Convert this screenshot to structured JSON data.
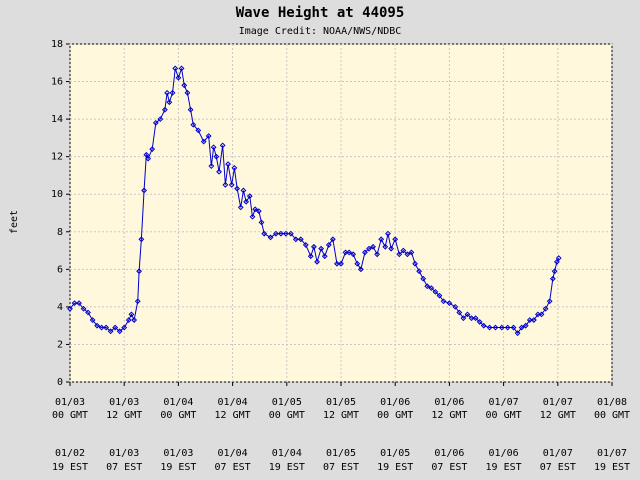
{
  "chart_data": {
    "type": "line",
    "title": "Wave Height at 44095",
    "subtitle": "Image Credit: NOAA/NWS/NDBC",
    "y_label": "feet",
    "color": "#0000cc",
    "grid": true,
    "xlim": [
      0,
      120
    ],
    "ylim": [
      0,
      18
    ],
    "yticks": [
      0,
      2,
      4,
      6,
      8,
      10,
      12,
      14,
      16,
      18
    ],
    "xticks": [
      {
        "value": 0,
        "label": "01/03"
      },
      {
        "value": 12,
        "label": "01/03"
      },
      {
        "value": 24,
        "label": "01/04"
      },
      {
        "value": 36,
        "label": "01/04"
      },
      {
        "value": 48,
        "label": "01/05"
      },
      {
        "value": 60,
        "label": "01/05"
      },
      {
        "value": 72,
        "label": "01/06"
      },
      {
        "value": 84,
        "label": "01/06"
      },
      {
        "value": 96,
        "label": "01/07"
      },
      {
        "value": 108,
        "label": "01/07"
      },
      {
        "value": 120,
        "label": "01/08"
      }
    ],
    "xtick_times": [
      "00 GMT",
      "12 GMT",
      "00 GMT",
      "12 GMT",
      "00 GMT",
      "12 GMT",
      "00 GMT",
      "12 GMT",
      "00 GMT",
      "12 GMT",
      "00 GMT"
    ],
    "xtick_est_dates": [
      "01/02",
      "01/03",
      "01/03",
      "01/04",
      "01/04",
      "01/05",
      "01/05",
      "01/06",
      "01/06",
      "01/07",
      "01/07"
    ],
    "xtick_est_times": [
      "19 EST",
      "07 EST",
      "19 EST",
      "07 EST",
      "19 EST",
      "07 EST",
      "19 EST",
      "07 EST",
      "19 EST",
      "07 EST",
      "19 EST"
    ],
    "x": [
      0,
      1,
      2,
      3,
      4,
      5,
      6,
      7,
      8,
      9,
      10,
      11,
      12,
      13,
      13.6,
      14.2,
      15,
      15.3,
      15.8,
      16.4,
      16.9,
      17.3,
      18.2,
      19,
      20,
      21,
      21.5,
      22,
      22.7,
      23.3,
      24,
      24.7,
      25.3,
      26,
      26.7,
      27.3,
      28.4,
      29.6,
      30.7,
      31.3,
      31.8,
      32.4,
      33,
      33.8,
      34.4,
      35,
      35.8,
      36.4,
      37,
      37.8,
      38.4,
      39,
      39.8,
      40.4,
      41,
      41.8,
      42.4,
      43,
      44.4,
      45.6,
      46.7,
      47.8,
      48.9,
      50,
      51.1,
      52.2,
      53.3,
      54,
      54.7,
      55.6,
      56.4,
      57.3,
      58.2,
      59.1,
      60,
      61,
      61.8,
      62.7,
      63.6,
      64.4,
      65.3,
      66.2,
      67.1,
      68,
      68.9,
      69.8,
      70.4,
      71.1,
      72,
      72.9,
      73.8,
      74.7,
      75.6,
      76.4,
      77.3,
      78.2,
      79.1,
      80,
      80.9,
      81.8,
      82.7,
      84,
      85.3,
      86.2,
      87.1,
      88,
      88.9,
      89.8,
      90.7,
      91.6,
      92.9,
      94.2,
      95.6,
      96.9,
      98.2,
      99.1,
      100,
      100.9,
      101.8,
      102.7,
      103.6,
      104.4,
      105.3,
      106.2,
      106.9,
      107.3,
      107.8,
      108.2
    ],
    "values": [
      3.9,
      4.2,
      4.2,
      3.9,
      3.7,
      3.3,
      3.0,
      2.9,
      2.9,
      2.7,
      2.9,
      2.7,
      2.9,
      3.3,
      3.6,
      3.3,
      4.3,
      5.9,
      7.6,
      10.2,
      12.1,
      11.9,
      12.4,
      13.8,
      14.0,
      14.5,
      15.4,
      14.9,
      15.4,
      16.7,
      16.2,
      16.7,
      15.8,
      15.4,
      14.5,
      13.7,
      13.4,
      12.8,
      13.1,
      11.5,
      12.5,
      12.0,
      11.2,
      12.6,
      10.5,
      11.6,
      10.5,
      11.4,
      10.3,
      9.3,
      10.2,
      9.6,
      9.9,
      8.8,
      9.2,
      9.1,
      8.5,
      7.9,
      7.7,
      7.9,
      7.9,
      7.9,
      7.9,
      7.6,
      7.6,
      7.3,
      6.7,
      7.2,
      6.4,
      7.1,
      6.7,
      7.3,
      7.6,
      6.3,
      6.3,
      6.9,
      6.9,
      6.8,
      6.3,
      6.0,
      6.9,
      7.1,
      7.2,
      6.8,
      7.6,
      7.2,
      7.9,
      7.1,
      7.6,
      6.8,
      7.0,
      6.8,
      6.9,
      6.3,
      5.9,
      5.5,
      5.1,
      5.0,
      4.8,
      4.6,
      4.3,
      4.2,
      4.0,
      3.7,
      3.4,
      3.6,
      3.4,
      3.4,
      3.2,
      3.0,
      2.9,
      2.9,
      2.9,
      2.9,
      2.9,
      2.6,
      2.9,
      3.0,
      3.3,
      3.3,
      3.6,
      3.6,
      3.9,
      4.3,
      5.5,
      5.9,
      6.4,
      6.6
    ]
  }
}
